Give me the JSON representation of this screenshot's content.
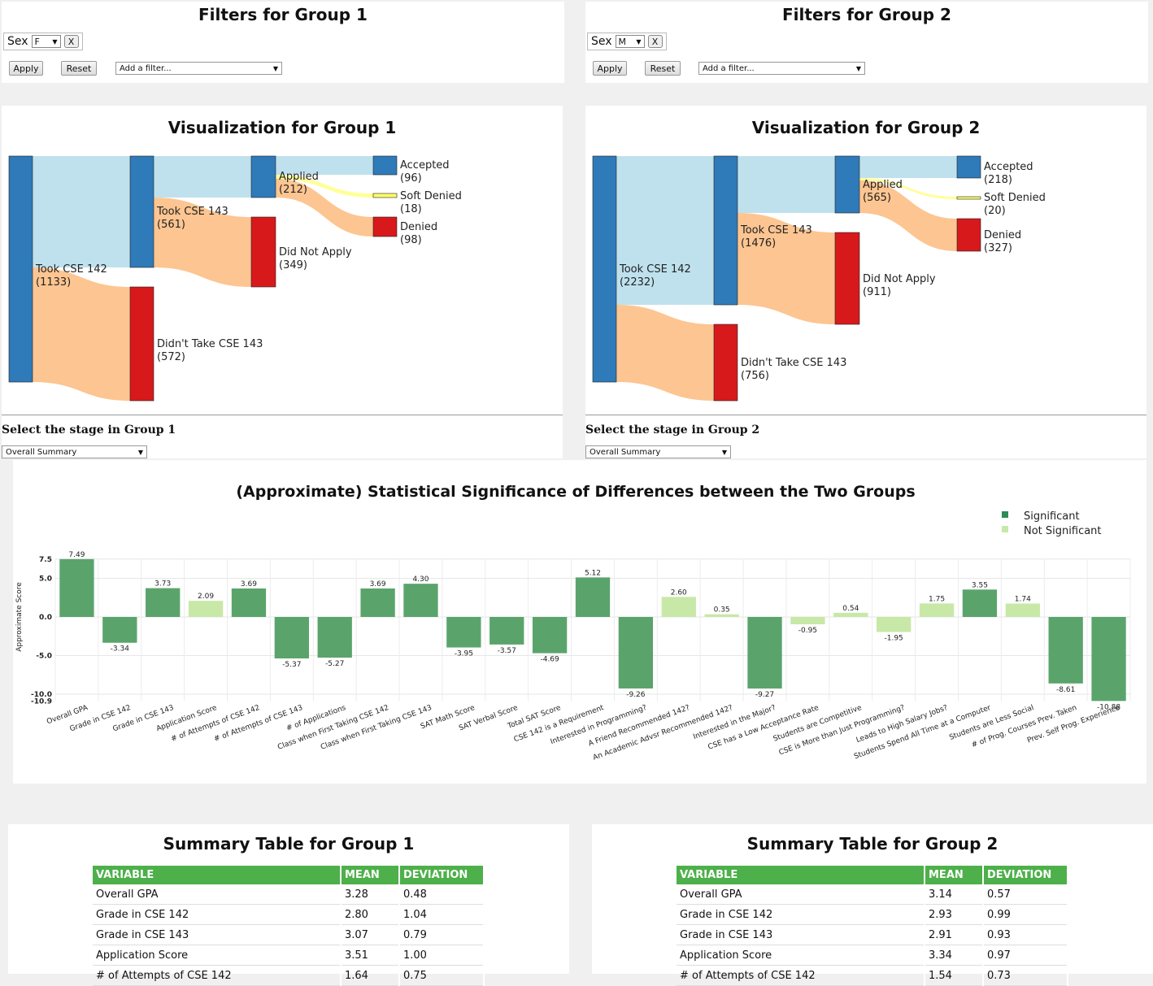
{
  "group1": {
    "filter_title": "Filters for Group 1",
    "filter_field": "Sex",
    "filter_value": "F",
    "remove_label": "X",
    "apply_label": "Apply",
    "reset_label": "Reset",
    "add_filter_placeholder": "Add a filter...",
    "viz_title": "Visualization for Group 1",
    "stage_label": "Select the stage in Group 1",
    "stage_value": "Overall Summary",
    "sankey_nodes": [
      {
        "name": "Took CSE 142",
        "count": "(1133)"
      },
      {
        "name": "Took CSE 143",
        "count": "(561)"
      },
      {
        "name": "Didn't Take CSE 143",
        "count": "(572)"
      },
      {
        "name": "Applied",
        "count": "(212)"
      },
      {
        "name": "Did Not Apply",
        "count": "(349)"
      },
      {
        "name": "Accepted",
        "count": "(96)"
      },
      {
        "name": "Soft Denied",
        "count": "(18)"
      },
      {
        "name": "Denied",
        "count": "(98)"
      }
    ],
    "table_title": "Summary Table for Group 1",
    "table_headers": [
      "VARIABLE",
      "MEAN",
      "DEVIATION"
    ],
    "table_rows": [
      [
        "Overall GPA",
        "3.28",
        "0.48"
      ],
      [
        "Grade in CSE 142",
        "2.80",
        "1.04"
      ],
      [
        "Grade in CSE 143",
        "3.07",
        "0.79"
      ],
      [
        "Application Score",
        "3.51",
        "1.00"
      ],
      [
        "# of Attempts of CSE 142",
        "1.64",
        "0.75"
      ]
    ]
  },
  "group2": {
    "filter_title": "Filters for Group 2",
    "filter_field": "Sex",
    "filter_value": "M",
    "remove_label": "X",
    "apply_label": "Apply",
    "reset_label": "Reset",
    "add_filter_placeholder": "Add a filter...",
    "viz_title": "Visualization for Group 2",
    "stage_label": "Select the stage in Group 2",
    "stage_value": "Overall Summary",
    "sankey_nodes": [
      {
        "name": "Took CSE 142",
        "count": "(2232)"
      },
      {
        "name": "Took CSE 143",
        "count": "(1476)"
      },
      {
        "name": "Didn't Take CSE 143",
        "count": "(756)"
      },
      {
        "name": "Applied",
        "count": "(565)"
      },
      {
        "name": "Did Not Apply",
        "count": "(911)"
      },
      {
        "name": "Accepted",
        "count": "(218)"
      },
      {
        "name": "Soft Denied",
        "count": "(20)"
      },
      {
        "name": "Denied",
        "count": "(327)"
      }
    ],
    "table_title": "Summary Table for Group 2",
    "table_headers": [
      "VARIABLE",
      "MEAN",
      "DEVIATION"
    ],
    "table_rows": [
      [
        "Overall GPA",
        "3.14",
        "0.57"
      ],
      [
        "Grade in CSE 142",
        "2.93",
        "0.99"
      ],
      [
        "Grade in CSE 143",
        "2.91",
        "0.93"
      ],
      [
        "Application Score",
        "3.34",
        "0.97"
      ],
      [
        "# of Attempts of CSE 142",
        "1.54",
        "0.73"
      ]
    ]
  },
  "colors": {
    "node_blue": "#2f7ab8",
    "node_red": "#d7191c",
    "link_blue": "#bfe1ee",
    "link_orange": "#fdc591",
    "soft_denied": "#ffff66",
    "significant": "#5aa46b",
    "not_significant": "#c8e8a8",
    "table_header": "#4db04a"
  },
  "chart_data": {
    "type": "bar",
    "title": "(Approximate) Statistical Significance of Differences between the Two Groups",
    "ylabel": "Approximate Score",
    "ylim": [
      -10.9,
      7.5
    ],
    "yticks": [
      "7.5",
      "5.0",
      "0.0",
      "-5.0",
      "-10.0",
      "-10.9"
    ],
    "legend": [
      "Significant",
      "Not Significant"
    ],
    "legend_position": "top-right",
    "grid": true,
    "categories": [
      "Overall GPA",
      "Grade in CSE 142",
      "Grade in CSE 143",
      "Application Score",
      "# of Attempts of CSE 142",
      "# of Attempts of CSE 143",
      "# of Applications",
      "Class when First Taking CSE 142",
      "Class when First Taking CSE 143",
      "SAT Math Score",
      "SAT Verbal Score",
      "Total SAT Score",
      "CSE 142 is a Requirement",
      "Interested in Programming?",
      "A Friend Recommended 142?",
      "An Academic Advsr Recommended 142?",
      "Interested in the Major?",
      "CSE has a Low Acceptance Rate",
      "Students are Competitive",
      "CSE is More than Just Programming?",
      "Leads to High Salary Jobs?",
      "Students Spend All Time at a Computer",
      "Students are Less Social",
      "# of Prog. Courses Prev. Taken",
      "Prev. Self Prog. Experience"
    ],
    "values": [
      7.49,
      -3.34,
      3.73,
      2.09,
      3.69,
      -5.37,
      -5.27,
      3.69,
      4.3,
      -3.95,
      -3.57,
      -4.69,
      5.12,
      -9.26,
      2.6,
      0.35,
      -9.27,
      -0.95,
      0.54,
      -1.95,
      1.75,
      3.55,
      1.74,
      -8.61,
      -10.88
    ],
    "value_labels": [
      "7.49",
      "-3.34",
      "3.73",
      "2.09",
      "3.69",
      "-5.37",
      "-5.27",
      "3.69",
      "4.30",
      "-3.95",
      "-3.57",
      "-4.69",
      "5.12",
      "-9.26",
      "2.60",
      "0.35",
      "-9.27",
      "-0.95",
      "0.54",
      "-1.95",
      "1.75",
      "3.55",
      "1.74",
      "-8.61",
      "-10.88"
    ],
    "significant": [
      true,
      true,
      true,
      false,
      true,
      true,
      true,
      true,
      true,
      true,
      true,
      true,
      true,
      true,
      false,
      false,
      true,
      false,
      false,
      false,
      false,
      true,
      false,
      true,
      true
    ]
  }
}
